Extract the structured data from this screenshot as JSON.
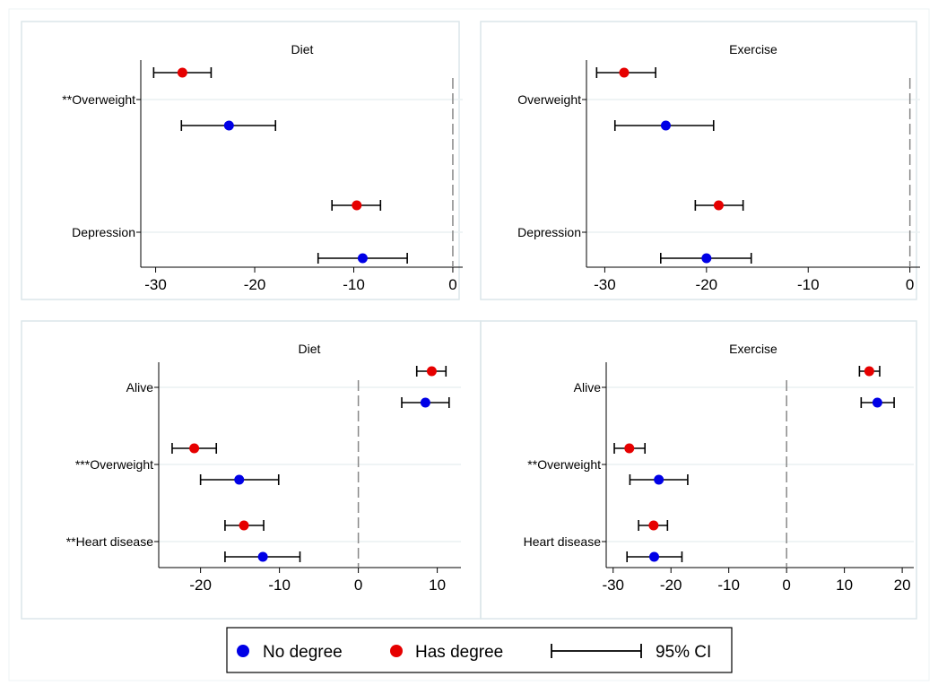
{
  "chart_data": [
    {
      "type": "scatter",
      "title": "Diet",
      "xlabel": "",
      "ylabel": "",
      "xlim": [
        -31.5,
        1
      ],
      "xticks": [
        -30,
        -20,
        -10,
        0
      ],
      "xtick_labels": [
        "-30",
        "-20",
        "-10",
        "0"
      ],
      "reference_line_x": 0,
      "grid": true,
      "categories": [
        "**Overweight",
        "Depression"
      ],
      "series": [
        {
          "name": "Has degree",
          "color": "#e60000",
          "points": [
            {
              "category": "**Overweight",
              "x": -27.3,
              "lo": -30.2,
              "hi": -24.4
            },
            {
              "category": "Depression",
              "x": -9.7,
              "lo": -12.2,
              "hi": -7.3
            }
          ]
        },
        {
          "name": "No degree",
          "color": "#0000e6",
          "points": [
            {
              "category": "**Overweight",
              "x": -22.6,
              "lo": -27.4,
              "hi": -17.9
            },
            {
              "category": "Depression",
              "x": -9.1,
              "lo": -13.6,
              "hi": -4.6
            }
          ]
        }
      ]
    },
    {
      "type": "scatter",
      "title": "Exercise",
      "xlabel": "",
      "ylabel": "",
      "xlim": [
        -31.8,
        1
      ],
      "xticks": [
        -30,
        -20,
        -10,
        0
      ],
      "xtick_labels": [
        "-30",
        "-20",
        "-10",
        "0"
      ],
      "reference_line_x": 0,
      "grid": true,
      "categories": [
        "Overweight",
        "Depression"
      ],
      "series": [
        {
          "name": "Has degree",
          "color": "#e60000",
          "points": [
            {
              "category": "Overweight",
              "x": -28.1,
              "lo": -30.8,
              "hi": -25.0
            },
            {
              "category": "Depression",
              "x": -18.8,
              "lo": -21.1,
              "hi": -16.4
            }
          ]
        },
        {
          "name": "No degree",
          "color": "#0000e6",
          "points": [
            {
              "category": "Overweight",
              "x": -24.0,
              "lo": -29.0,
              "hi": -19.3
            },
            {
              "category": "Depression",
              "x": -20.0,
              "lo": -24.5,
              "hi": -15.6
            }
          ]
        }
      ]
    },
    {
      "type": "scatter",
      "title": "Diet",
      "xlabel": "",
      "ylabel": "",
      "xlim": [
        -25.3,
        13.0
      ],
      "xticks": [
        -20,
        -10,
        0,
        10
      ],
      "xtick_labels": [
        "-20",
        "-10",
        "0",
        "10"
      ],
      "reference_line_x": 0,
      "grid": true,
      "categories": [
        "Alive",
        "***Overweight",
        "**Heart disease"
      ],
      "series": [
        {
          "name": "Has degree",
          "color": "#e60000",
          "points": [
            {
              "category": "Alive",
              "x": 9.3,
              "lo": 7.4,
              "hi": 11.1
            },
            {
              "category": "***Overweight",
              "x": -20.8,
              "lo": -23.6,
              "hi": -18.0
            },
            {
              "category": "**Heart disease",
              "x": -14.5,
              "lo": -16.9,
              "hi": -12.0
            }
          ]
        },
        {
          "name": "No degree",
          "color": "#0000e6",
          "points": [
            {
              "category": "Alive",
              "x": 8.5,
              "lo": 5.5,
              "hi": 11.5
            },
            {
              "category": "***Overweight",
              "x": -15.1,
              "lo": -20.0,
              "hi": -10.1
            },
            {
              "category": "**Heart disease",
              "x": -12.1,
              "lo": -16.9,
              "hi": -7.4
            }
          ]
        }
      ]
    },
    {
      "type": "scatter",
      "title": "Exercise",
      "xlabel": "",
      "ylabel": "",
      "xlim": [
        -31.2,
        22.0
      ],
      "xticks": [
        -30,
        -20,
        -10,
        0,
        10,
        20
      ],
      "xtick_labels": [
        "-30",
        "-20",
        "-10",
        "0",
        "10",
        "20"
      ],
      "reference_line_x": 0,
      "grid": true,
      "categories": [
        "Alive",
        "**Overweight",
        "Heart disease"
      ],
      "series": [
        {
          "name": "Has degree",
          "color": "#e60000",
          "points": [
            {
              "category": "Alive",
              "x": 14.3,
              "lo": 12.6,
              "hi": 16.1
            },
            {
              "category": "**Overweight",
              "x": -27.2,
              "lo": -29.8,
              "hi": -24.5
            },
            {
              "category": "Heart disease",
              "x": -23.0,
              "lo": -25.6,
              "hi": -20.6
            }
          ]
        },
        {
          "name": "No degree",
          "color": "#0000e6",
          "points": [
            {
              "category": "Alive",
              "x": 15.7,
              "lo": 12.9,
              "hi": 18.6
            },
            {
              "category": "**Overweight",
              "x": -22.1,
              "lo": -27.1,
              "hi": -17.1
            },
            {
              "category": "Heart disease",
              "x": -22.9,
              "lo": -27.6,
              "hi": -18.1
            }
          ]
        }
      ]
    }
  ],
  "legend": {
    "placement": "bottom",
    "items": [
      {
        "label": "No degree",
        "color": "#0000e6",
        "kind": "marker"
      },
      {
        "label": "Has degree",
        "color": "#e60000",
        "kind": "marker"
      },
      {
        "label": "95% CI",
        "color": "#000000",
        "kind": "ci"
      }
    ]
  },
  "colors": {
    "no_degree": "#0000e6",
    "has_degree": "#e60000",
    "grid": "#eaf0f2",
    "reference_line": "#888888",
    "panel_border": "#dce6ea"
  }
}
